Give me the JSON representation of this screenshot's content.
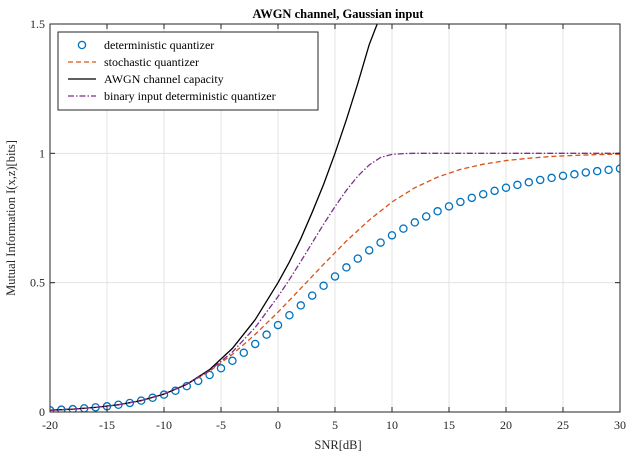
{
  "chart_data": {
    "type": "line",
    "title": "AWGN channel, Gaussian input",
    "xlabel": "SNR[dB]",
    "ylabel": "Mutual Information I(x,z)[bits]",
    "xlim": [
      -20,
      30
    ],
    "ylim": [
      0,
      1.5
    ],
    "xticks": [
      -20,
      -15,
      -10,
      -5,
      0,
      5,
      10,
      15,
      20,
      25,
      30
    ],
    "xtick_labels": [
      "-20",
      "-15",
      "-10",
      "-5",
      "0",
      "5",
      "10",
      "15",
      "20",
      "25",
      "30"
    ],
    "yticks": [
      0,
      0.5,
      1,
      1.5
    ],
    "ytick_labels": [
      "0",
      "0.5",
      "1",
      "1.5"
    ],
    "grid": true,
    "legend_position": "top-left",
    "series": [
      {
        "name": "deterministic quantizer",
        "style": "markers",
        "marker": "circle",
        "color": "#0072BD",
        "x": [
          -20,
          -19,
          -18,
          -17,
          -16,
          -15,
          -14,
          -13,
          -12,
          -11,
          -10,
          -9,
          -8,
          -7,
          -6,
          -5,
          -4,
          -3,
          -2,
          -1,
          0,
          1,
          2,
          3,
          4,
          5,
          6,
          7,
          8,
          9,
          10,
          11,
          12,
          13,
          14,
          15,
          16,
          17,
          18,
          19,
          20,
          21,
          22,
          23,
          24,
          25,
          26,
          27,
          28,
          29,
          30
        ],
        "y": [
          0.007,
          0.009,
          0.011,
          0.014,
          0.018,
          0.022,
          0.028,
          0.035,
          0.044,
          0.055,
          0.067,
          0.082,
          0.1,
          0.12,
          0.143,
          0.169,
          0.198,
          0.229,
          0.263,
          0.299,
          0.336,
          0.374,
          0.412,
          0.45,
          0.488,
          0.524,
          0.559,
          0.593,
          0.625,
          0.655,
          0.683,
          0.709,
          0.733,
          0.756,
          0.776,
          0.795,
          0.812,
          0.828,
          0.842,
          0.855,
          0.867,
          0.878,
          0.888,
          0.897,
          0.905,
          0.913,
          0.919,
          0.926,
          0.931,
          0.936,
          0.941
        ]
      },
      {
        "name": "stochastic quantizer",
        "style": "dashed",
        "color": "#D95319",
        "x": [
          -20,
          -18,
          -16,
          -14,
          -12,
          -10,
          -8,
          -6,
          -4,
          -2,
          0,
          2,
          4,
          6,
          8,
          10,
          12,
          14,
          16,
          18,
          20,
          22,
          24,
          26,
          28,
          30
        ],
        "y": [
          0.007,
          0.011,
          0.018,
          0.028,
          0.045,
          0.07,
          0.107,
          0.158,
          0.223,
          0.3,
          0.386,
          0.478,
          0.571,
          0.661,
          0.742,
          0.812,
          0.867,
          0.908,
          0.938,
          0.958,
          0.972,
          0.981,
          0.988,
          0.992,
          0.995,
          0.997
        ]
      },
      {
        "name": "AWGN channel capacity",
        "style": "solid",
        "color": "#000000",
        "x": [
          -20,
          -18,
          -16,
          -14,
          -12,
          -10,
          -8,
          -6,
          -4,
          -2,
          0,
          1,
          2,
          3,
          4,
          5,
          6,
          7,
          8,
          8.7
        ],
        "y": [
          0.007,
          0.011,
          0.018,
          0.028,
          0.044,
          0.069,
          0.107,
          0.164,
          0.246,
          0.357,
          0.5,
          0.58,
          0.67,
          0.772,
          0.88,
          1.0,
          1.13,
          1.27,
          1.42,
          1.5
        ]
      },
      {
        "name": "binary input deterministic quantizer",
        "style": "dashdot",
        "color": "#7E2F8E",
        "x": [
          -20,
          -18,
          -16,
          -14,
          -12,
          -10,
          -8,
          -6,
          -4,
          -2,
          0,
          1,
          2,
          3,
          4,
          5,
          6,
          7,
          8,
          9,
          10,
          11,
          12,
          14,
          16,
          20,
          25,
          30
        ],
        "y": [
          0.007,
          0.011,
          0.018,
          0.028,
          0.044,
          0.07,
          0.108,
          0.16,
          0.232,
          0.327,
          0.446,
          0.512,
          0.582,
          0.654,
          0.726,
          0.794,
          0.857,
          0.912,
          0.955,
          0.984,
          0.996,
          0.999,
          1.0,
          1.0,
          1.0,
          1.0,
          1.0,
          1.0
        ]
      }
    ]
  }
}
